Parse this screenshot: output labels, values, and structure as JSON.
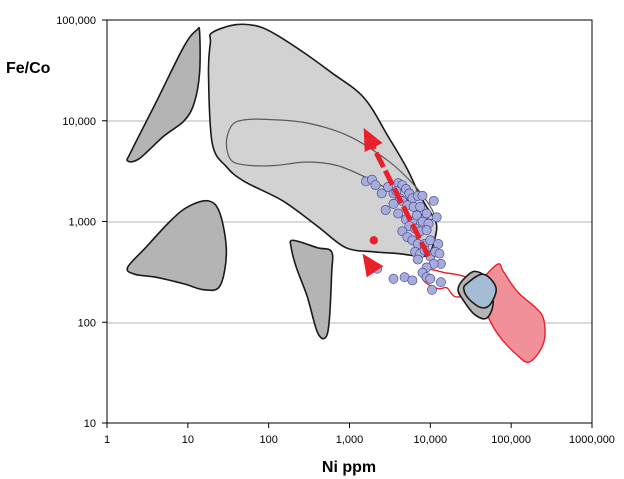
{
  "chart_data": {
    "type": "scatter",
    "title": "",
    "xlabel": "Ni ppm",
    "ylabel": "Fe/Co",
    "xscale": "log",
    "yscale": "log",
    "xlim": [
      1,
      1000000
    ],
    "ylim": [
      10,
      100000
    ],
    "x_ticks": [
      1,
      10,
      100,
      1000,
      10000,
      100000,
      1000000
    ],
    "x_tick_labels": [
      "1",
      "10",
      "100",
      "1,000",
      "10,000",
      "100,000",
      "1000,000"
    ],
    "y_ticks": [
      10,
      100,
      1000,
      10000,
      100000
    ],
    "y_tick_labels": [
      "10",
      "100",
      "1,000",
      "10,000",
      "100,000"
    ],
    "grid": "horizontal",
    "colors": {
      "field_dark": "#b4b4b4",
      "field_light": "#d2d2d2",
      "field_blue": "#a4bcd4",
      "field_red": "#f2909a",
      "points": "#a7acdc",
      "arrow": "#e8202a"
    },
    "fields": [
      {
        "fill": "dark",
        "vertices": [
          [
            1.8,
            4000
          ],
          [
            2,
            5000
          ],
          [
            4,
            15000
          ],
          [
            9,
            55000
          ],
          [
            13,
            80000
          ],
          [
            14,
            75000
          ],
          [
            14,
            30000
          ],
          [
            12,
            15000
          ],
          [
            9,
            10000
          ],
          [
            5,
            7000
          ],
          [
            2.5,
            4200
          ]
        ]
      },
      {
        "fill": "light",
        "vertices": [
          [
            20,
            75000
          ],
          [
            40,
            90000
          ],
          [
            80,
            85000
          ],
          [
            150,
            65000
          ],
          [
            300,
            45000
          ],
          [
            600,
            30000
          ],
          [
            1500,
            17000
          ],
          [
            3000,
            7000
          ],
          [
            5000,
            3500
          ],
          [
            7000,
            2000
          ],
          [
            9000,
            1400
          ],
          [
            11000,
            1100
          ],
          [
            12000,
            900
          ],
          [
            11500,
            700
          ],
          [
            10000,
            500
          ],
          [
            8000,
            450
          ],
          [
            4000,
            480
          ],
          [
            2000,
            500
          ],
          [
            900,
            550
          ],
          [
            400,
            900
          ],
          [
            150,
            1600
          ],
          [
            50,
            2500
          ],
          [
            30,
            3500
          ],
          [
            20,
            6000
          ],
          [
            18,
            30000
          ],
          [
            19,
            60000
          ]
        ]
      },
      {
        "fill": "none",
        "vertices": [
          [
            35,
            9000
          ],
          [
            50,
            10200
          ],
          [
            100,
            10300
          ],
          [
            300,
            9500
          ],
          [
            1000,
            7000
          ],
          [
            3000,
            4000
          ],
          [
            6000,
            2400
          ],
          [
            9000,
            1600
          ],
          [
            11000,
            1200
          ],
          [
            10500,
            1050
          ],
          [
            8000,
            1150
          ],
          [
            5000,
            1700
          ],
          [
            3000,
            2100
          ],
          [
            1500,
            2800
          ],
          [
            700,
            3600
          ],
          [
            300,
            3900
          ],
          [
            120,
            3600
          ],
          [
            60,
            3600
          ],
          [
            35,
            4000
          ],
          [
            30,
            6000
          ]
        ]
      },
      {
        "fill": "dark",
        "vertices": [
          [
            1.8,
            350
          ],
          [
            2.2,
            300
          ],
          [
            4,
            280
          ],
          [
            9,
            240
          ],
          [
            16,
            210
          ],
          [
            25,
            230
          ],
          [
            30,
            500
          ],
          [
            25,
            1200
          ],
          [
            18,
            1600
          ],
          [
            10,
            1400
          ],
          [
            6,
            1000
          ],
          [
            3,
            550
          ]
        ]
      },
      {
        "fill": "dark",
        "vertices": [
          [
            200,
            650
          ],
          [
            400,
            550
          ],
          [
            600,
            500
          ],
          [
            600,
            300
          ],
          [
            560,
            100
          ],
          [
            500,
            70
          ],
          [
            400,
            80
          ],
          [
            300,
            180
          ],
          [
            220,
            350
          ],
          [
            190,
            550
          ]
        ]
      },
      {
        "fill": "red",
        "vertices": [
          [
            50000,
            300
          ],
          [
            70000,
            380
          ],
          [
            80000,
            320
          ],
          [
            120000,
            200
          ],
          [
            200000,
            140
          ],
          [
            250000,
            110
          ],
          [
            260000,
            70
          ],
          [
            220000,
            50
          ],
          [
            160000,
            40
          ],
          [
            110000,
            50
          ],
          [
            80000,
            65
          ],
          [
            60000,
            90
          ],
          [
            45000,
            150
          ],
          [
            40000,
            230
          ]
        ]
      },
      {
        "fill": "none_red",
        "vertices": [
          [
            8000,
            340
          ],
          [
            13000,
            320
          ],
          [
            15000,
            310
          ],
          [
            20000,
            300
          ],
          [
            28000,
            280
          ],
          [
            30000,
            250
          ],
          [
            28000,
            190
          ],
          [
            20000,
            180
          ],
          [
            16000,
            220
          ],
          [
            13000,
            215
          ],
          [
            10000,
            230
          ],
          [
            8000,
            270
          ]
        ]
      },
      {
        "fill": "dark",
        "vertices": [
          [
            25000,
            260
          ],
          [
            35000,
            320
          ],
          [
            50000,
            270
          ],
          [
            60000,
            160
          ],
          [
            50000,
            110
          ],
          [
            35000,
            120
          ],
          [
            25000,
            170
          ],
          [
            22000,
            210
          ]
        ]
      },
      {
        "fill": "blue",
        "vertices": [
          [
            28000,
            240
          ],
          [
            45000,
            300
          ],
          [
            65000,
            220
          ],
          [
            55000,
            150
          ],
          [
            42000,
            140
          ],
          [
            30000,
            170
          ],
          [
            26000,
            210
          ]
        ]
      }
    ],
    "arrows": [
      {
        "from": [
          2000,
          330
        ],
        "to": [
          1450,
          480
        ]
      },
      {
        "from": [
          9500,
          450
        ],
        "to": [
          1500,
          8500
        ]
      }
    ],
    "highlight_points": [
      [
        2000,
        650
      ]
    ],
    "points": [
      [
        1600,
        2500
      ],
      [
        1900,
        2600
      ],
      [
        2100,
        2300
      ],
      [
        2500,
        1900
      ],
      [
        3000,
        2200
      ],
      [
        3500,
        1900
      ],
      [
        4000,
        2400
      ],
      [
        4500,
        2300
      ],
      [
        3800,
        2000
      ],
      [
        5000,
        2100
      ],
      [
        4200,
        1700
      ],
      [
        5500,
        1900
      ],
      [
        6000,
        1700
      ],
      [
        7000,
        1800
      ],
      [
        8000,
        1800
      ],
      [
        11000,
        1600
      ],
      [
        2800,
        1300
      ],
      [
        3500,
        1500
      ],
      [
        4500,
        1600
      ],
      [
        5200,
        1450
      ],
      [
        6200,
        1400
      ],
      [
        7500,
        1400
      ],
      [
        9000,
        1200
      ],
      [
        12000,
        1100
      ],
      [
        4000,
        1200
      ],
      [
        5000,
        1050
      ],
      [
        6000,
        1000
      ],
      [
        6800,
        1150
      ],
      [
        8000,
        1000
      ],
      [
        9500,
        950
      ],
      [
        5500,
        900
      ],
      [
        6500,
        850
      ],
      [
        7500,
        800
      ],
      [
        9000,
        820
      ],
      [
        4500,
        800
      ],
      [
        5200,
        700
      ],
      [
        6000,
        650
      ],
      [
        7000,
        600
      ],
      [
        8500,
        600
      ],
      [
        10000,
        650
      ],
      [
        12500,
        600
      ],
      [
        6500,
        500
      ],
      [
        7500,
        480
      ],
      [
        8500,
        520
      ],
      [
        10000,
        450
      ],
      [
        11500,
        500
      ],
      [
        13000,
        480
      ],
      [
        13500,
        380
      ],
      [
        11000,
        380
      ],
      [
        9000,
        350
      ],
      [
        7000,
        420
      ],
      [
        2200,
        340
      ],
      [
        3500,
        270
      ],
      [
        4800,
        280
      ],
      [
        6000,
        260
      ],
      [
        8000,
        310
      ],
      [
        9000,
        280
      ],
      [
        10500,
        210
      ],
      [
        10000,
        270
      ],
      [
        13500,
        250
      ]
    ]
  }
}
